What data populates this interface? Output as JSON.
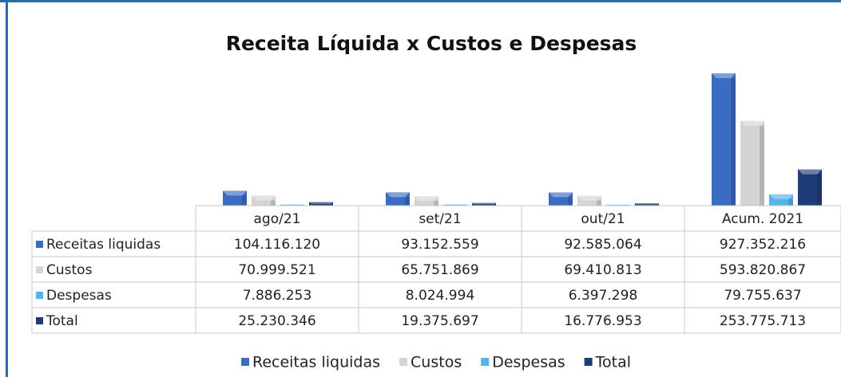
{
  "chart_data": {
    "type": "bar",
    "title": "Receita Líquida x Custos e Despesas",
    "categories": [
      "ago/21",
      "set/21",
      "out/21",
      "Acum. 2021"
    ],
    "series": [
      {
        "name": "Receitas liquidas",
        "color": "#3a6cc2",
        "values": [
          104116120,
          93152559,
          92585064,
          927352216
        ],
        "value_labels": [
          "104.116.120",
          "93.152.559",
          "92.585.064",
          "927.352.216"
        ]
      },
      {
        "name": "Custos",
        "color": "#d4d4d4",
        "values": [
          70999521,
          65751869,
          69410813,
          593820867
        ],
        "value_labels": [
          "70.999.521",
          "65.751.869",
          "69.410.813",
          "593.820.867"
        ]
      },
      {
        "name": "Despesas",
        "color": "#55b2ea",
        "values": [
          7886253,
          8024994,
          6397298,
          79755637
        ],
        "value_labels": [
          "7.886.253",
          "8.024.994",
          "6.397.298",
          "79.755.637"
        ]
      },
      {
        "name": "Total",
        "color": "#1f3c78",
        "values": [
          25230346,
          19375697,
          16776953,
          253775713
        ],
        "value_labels": [
          "25.230.346",
          "19.375.697",
          "16.776.953",
          "253.775.713"
        ]
      }
    ]
  }
}
